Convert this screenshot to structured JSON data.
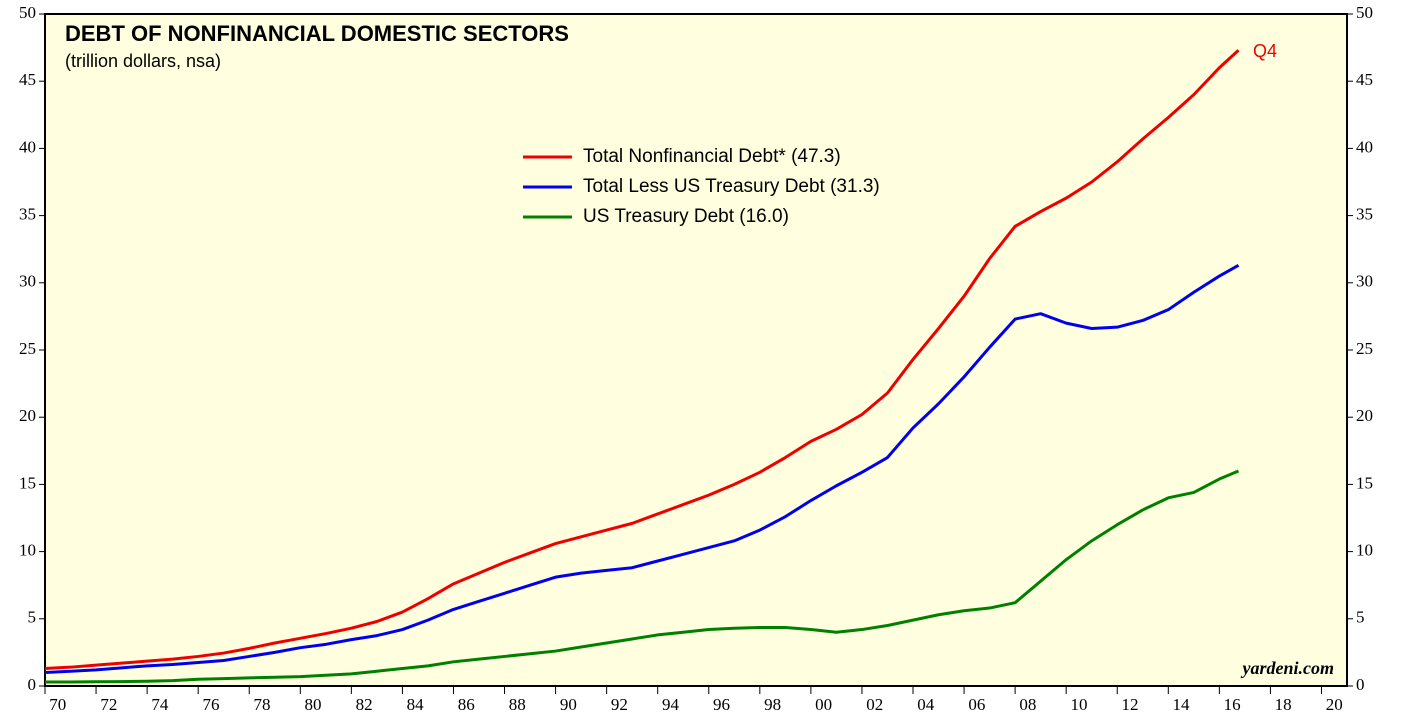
{
  "chart_data": {
    "type": "line",
    "title": "DEBT OF NONFINANCIAL DOMESTIC SECTORS",
    "subtitle": "(trillion dollars, nsa)",
    "annotation": "Q4",
    "credit": "yardeni.com",
    "x": [
      1970,
      1971,
      1972,
      1973,
      1974,
      1975,
      1976,
      1977,
      1978,
      1979,
      1980,
      1981,
      1982,
      1983,
      1984,
      1985,
      1986,
      1987,
      1988,
      1989,
      1990,
      1991,
      1992,
      1993,
      1994,
      1995,
      1996,
      1997,
      1998,
      1999,
      2000,
      2001,
      2002,
      2003,
      2004,
      2005,
      2006,
      2007,
      2008,
      2009,
      2010,
      2011,
      2012,
      2013,
      2014,
      2015,
      2016,
      2016.75
    ],
    "series": [
      {
        "name": "Total Nonfinancial Debt* (47.3)",
        "color": "#ee0000",
        "values": [
          1.3,
          1.4,
          1.55,
          1.7,
          1.85,
          2.0,
          2.2,
          2.45,
          2.8,
          3.2,
          3.55,
          3.9,
          4.3,
          4.8,
          5.5,
          6.5,
          7.6,
          8.4,
          9.2,
          9.9,
          10.6,
          11.1,
          11.6,
          12.1,
          12.8,
          13.5,
          14.2,
          15.0,
          15.9,
          17.0,
          18.2,
          19.1,
          20.2,
          21.8,
          24.3,
          26.6,
          29.0,
          31.8,
          34.2,
          35.3,
          36.3,
          37.5,
          39.0,
          40.7,
          42.3,
          44.0,
          46.0,
          47.3
        ]
      },
      {
        "name": "Total Less US Treasury Debt (31.3)",
        "color": "#0000ee",
        "values": [
          1.0,
          1.1,
          1.2,
          1.35,
          1.5,
          1.6,
          1.75,
          1.9,
          2.2,
          2.5,
          2.85,
          3.1,
          3.45,
          3.75,
          4.2,
          4.9,
          5.7,
          6.3,
          6.9,
          7.5,
          8.1,
          8.4,
          8.6,
          8.8,
          9.3,
          9.8,
          10.3,
          10.8,
          11.6,
          12.6,
          13.8,
          14.9,
          15.9,
          17.0,
          19.2,
          21.0,
          23.0,
          25.2,
          27.3,
          27.7,
          27.0,
          26.6,
          26.7,
          27.2,
          28.0,
          29.3,
          30.5,
          31.3
        ]
      },
      {
        "name": "US Treasury Debt (16.0)",
        "color": "#008000",
        "values": [
          0.3,
          0.3,
          0.32,
          0.33,
          0.35,
          0.4,
          0.5,
          0.55,
          0.6,
          0.65,
          0.7,
          0.8,
          0.9,
          1.1,
          1.3,
          1.5,
          1.8,
          2.0,
          2.2,
          2.4,
          2.6,
          2.9,
          3.2,
          3.5,
          3.8,
          4.0,
          4.2,
          4.3,
          4.35,
          4.35,
          4.2,
          4.0,
          4.2,
          4.5,
          4.9,
          5.3,
          5.6,
          5.8,
          6.2,
          7.8,
          9.4,
          10.8,
          12.0,
          13.1,
          14.0,
          14.4,
          15.4,
          16.0
        ]
      }
    ],
    "xlim": [
      1970,
      2021
    ],
    "xticks": [
      {
        "value": 1970,
        "label": "70"
      },
      {
        "value": 1972,
        "label": "72"
      },
      {
        "value": 1974,
        "label": "74"
      },
      {
        "value": 1976,
        "label": "76"
      },
      {
        "value": 1978,
        "label": "78"
      },
      {
        "value": 1980,
        "label": "80"
      },
      {
        "value": 1982,
        "label": "82"
      },
      {
        "value": 1984,
        "label": "84"
      },
      {
        "value": 1986,
        "label": "86"
      },
      {
        "value": 1988,
        "label": "88"
      },
      {
        "value": 1990,
        "label": "90"
      },
      {
        "value": 1992,
        "label": "92"
      },
      {
        "value": 1994,
        "label": "94"
      },
      {
        "value": 1996,
        "label": "96"
      },
      {
        "value": 1998,
        "label": "98"
      },
      {
        "value": 2000,
        "label": "00"
      },
      {
        "value": 2002,
        "label": "02"
      },
      {
        "value": 2004,
        "label": "04"
      },
      {
        "value": 2006,
        "label": "06"
      },
      {
        "value": 2008,
        "label": "08"
      },
      {
        "value": 2010,
        "label": "10"
      },
      {
        "value": 2012,
        "label": "12"
      },
      {
        "value": 2014,
        "label": "14"
      },
      {
        "value": 2016,
        "label": "16"
      },
      {
        "value": 2018,
        "label": "18"
      },
      {
        "value": 2020,
        "label": "20"
      }
    ],
    "ylim": [
      0,
      50
    ],
    "yticks": [
      0,
      5,
      10,
      15,
      20,
      25,
      30,
      35,
      40,
      45,
      50
    ]
  }
}
